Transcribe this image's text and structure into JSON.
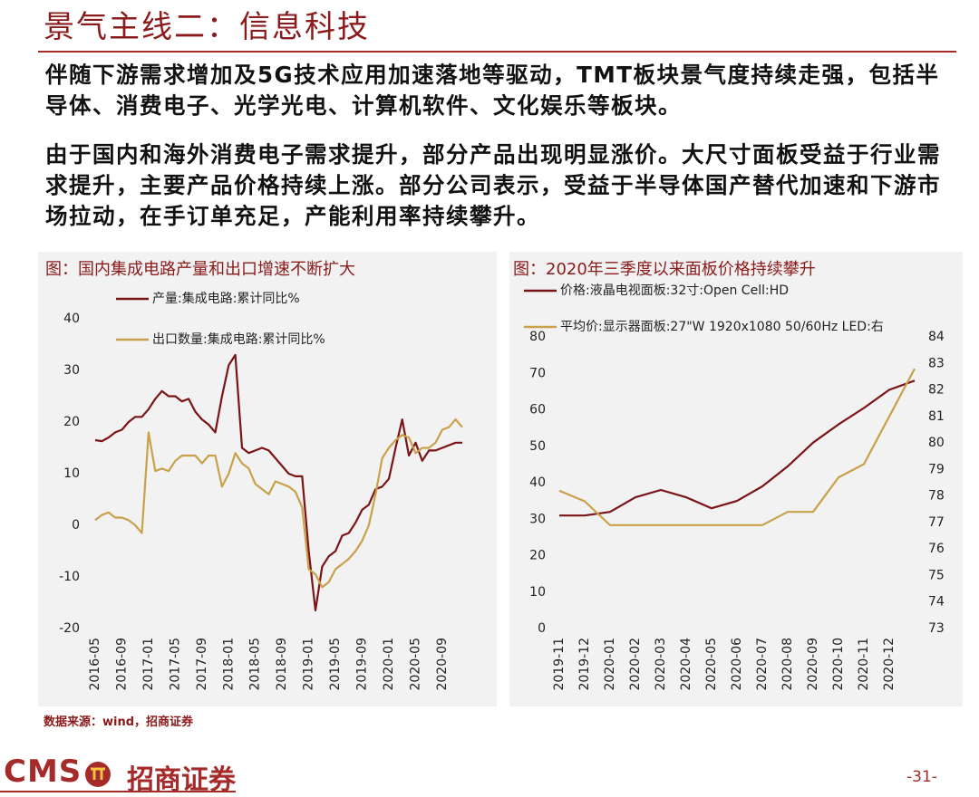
{
  "header": {
    "title": "景气主线二：信息科技"
  },
  "paragraphs": [
    "伴随下游需求增加及5G技术应用加速落地等驱动，TMT板块景气度持续走强，包括半导体、消费电子、光学光电、计算机软件、文化娱乐等板块。",
    "由于国内和海外消费电子需求提升，部分产品出现明显涨价。大尺寸面板受益于行业需求提升，主要产品价格持续上涨。部分公司表示，受益于半导体国产替代加速和下游市场拉动，在手订单充足，产能利用率持续攀升。"
  ],
  "chart_data": [
    {
      "type": "line",
      "title": "图：国内集成电路产量和出口增速不断扩大",
      "categories": [
        "2016-05",
        null,
        null,
        null,
        "2016-09",
        null,
        null,
        null,
        "2017-01",
        null,
        null,
        null,
        "2017-05",
        null,
        null,
        null,
        "2017-09",
        null,
        null,
        null,
        "2018-01",
        null,
        null,
        null,
        "2018-05",
        null,
        null,
        null,
        "2018-09",
        null,
        null,
        null,
        "2019-01",
        null,
        null,
        null,
        "2019-05",
        null,
        null,
        null,
        "2019-09",
        null,
        null,
        null,
        "2020-01",
        null,
        null,
        null,
        "2020-05",
        null,
        null,
        null,
        "2020-09",
        null,
        null,
        null
      ],
      "series": [
        {
          "name": "产量:集成电路:累计同比%",
          "color": "#7b1416",
          "values": [
            16.5,
            16.3,
            17,
            18,
            18.5,
            20,
            21,
            21,
            22.5,
            24.5,
            26,
            25,
            25,
            24,
            24.5,
            22,
            20.5,
            19.5,
            18,
            25,
            31,
            33,
            15,
            14,
            14.5,
            15,
            14.5,
            13,
            11.5,
            10,
            9.5,
            9.5,
            -5,
            -16.5,
            -8,
            -6,
            -5,
            -2,
            -1.5,
            0.5,
            3,
            4,
            7,
            7.5,
            9,
            15,
            20.5,
            13.5,
            16,
            12.5,
            14.5,
            14.5,
            15,
            15.5,
            16,
            16
          ]
        },
        {
          "name": "出口数量:集成电路:累计同比%",
          "color": "#c9a14a",
          "values": [
            1,
            2,
            2.5,
            1.5,
            1.5,
            1,
            0,
            -1.5,
            18,
            10.5,
            11,
            10.5,
            12.5,
            13.5,
            13.5,
            13.5,
            12,
            13.5,
            13.5,
            7.5,
            10,
            14,
            12,
            11,
            8,
            7,
            6,
            8.5,
            8,
            7.5,
            6.5,
            3.5,
            -8.5,
            -9.5,
            -12,
            -11,
            -8.5,
            -7.5,
            -6.5,
            -5,
            -3,
            0,
            6,
            13,
            15,
            16.5,
            17.5,
            17,
            14,
            15,
            15,
            16,
            18.5,
            19,
            20.5,
            19
          ]
        }
      ],
      "ylim": [
        -20,
        40
      ],
      "yticks": [
        -20,
        -10,
        0,
        10,
        20,
        30,
        40
      ]
    },
    {
      "type": "line",
      "title": "图：2020年三季度以来面板价格持续攀升",
      "categories": [
        "2019-11",
        "2019-12",
        "2020-01",
        "2020-02",
        "2020-03",
        "2020-04",
        "2020-05",
        "2020-06",
        "2020-07",
        "2020-08",
        "2020-09",
        "2020-10",
        "2020-11",
        "2020-12",
        null
      ],
      "series": [
        {
          "name": "价格:液晶电视面板:32寸:Open Cell:HD",
          "color": "#7b1416",
          "values": [
            31,
            31,
            32,
            36,
            38,
            36,
            33,
            35,
            39,
            44.5,
            51,
            56,
            60.5,
            65.5,
            68
          ]
        },
        {
          "name": "平均价:显示器面板:27\"W 1920x1080 50/60Hz LED:右",
          "color": "#c9a14a",
          "axis": "y2",
          "values": [
            78.2,
            77.8,
            76.9,
            76.9,
            76.9,
            76.9,
            76.9,
            76.9,
            76.9,
            77.4,
            77.4,
            78.7,
            79.2,
            81,
            82.8
          ]
        }
      ],
      "ylim": [
        0,
        80
      ],
      "yticks": [
        0,
        10,
        20,
        30,
        40,
        50,
        60,
        70,
        80
      ],
      "y2lim": [
        73,
        84
      ],
      "y2ticks": [
        73,
        74,
        75,
        76,
        77,
        78,
        79,
        80,
        81,
        82,
        83,
        84
      ]
    }
  ],
  "source": "数据来源：wind，招商证券",
  "footer": {
    "logo": "CMS",
    "company": "招商证券",
    "page": "-31-"
  }
}
